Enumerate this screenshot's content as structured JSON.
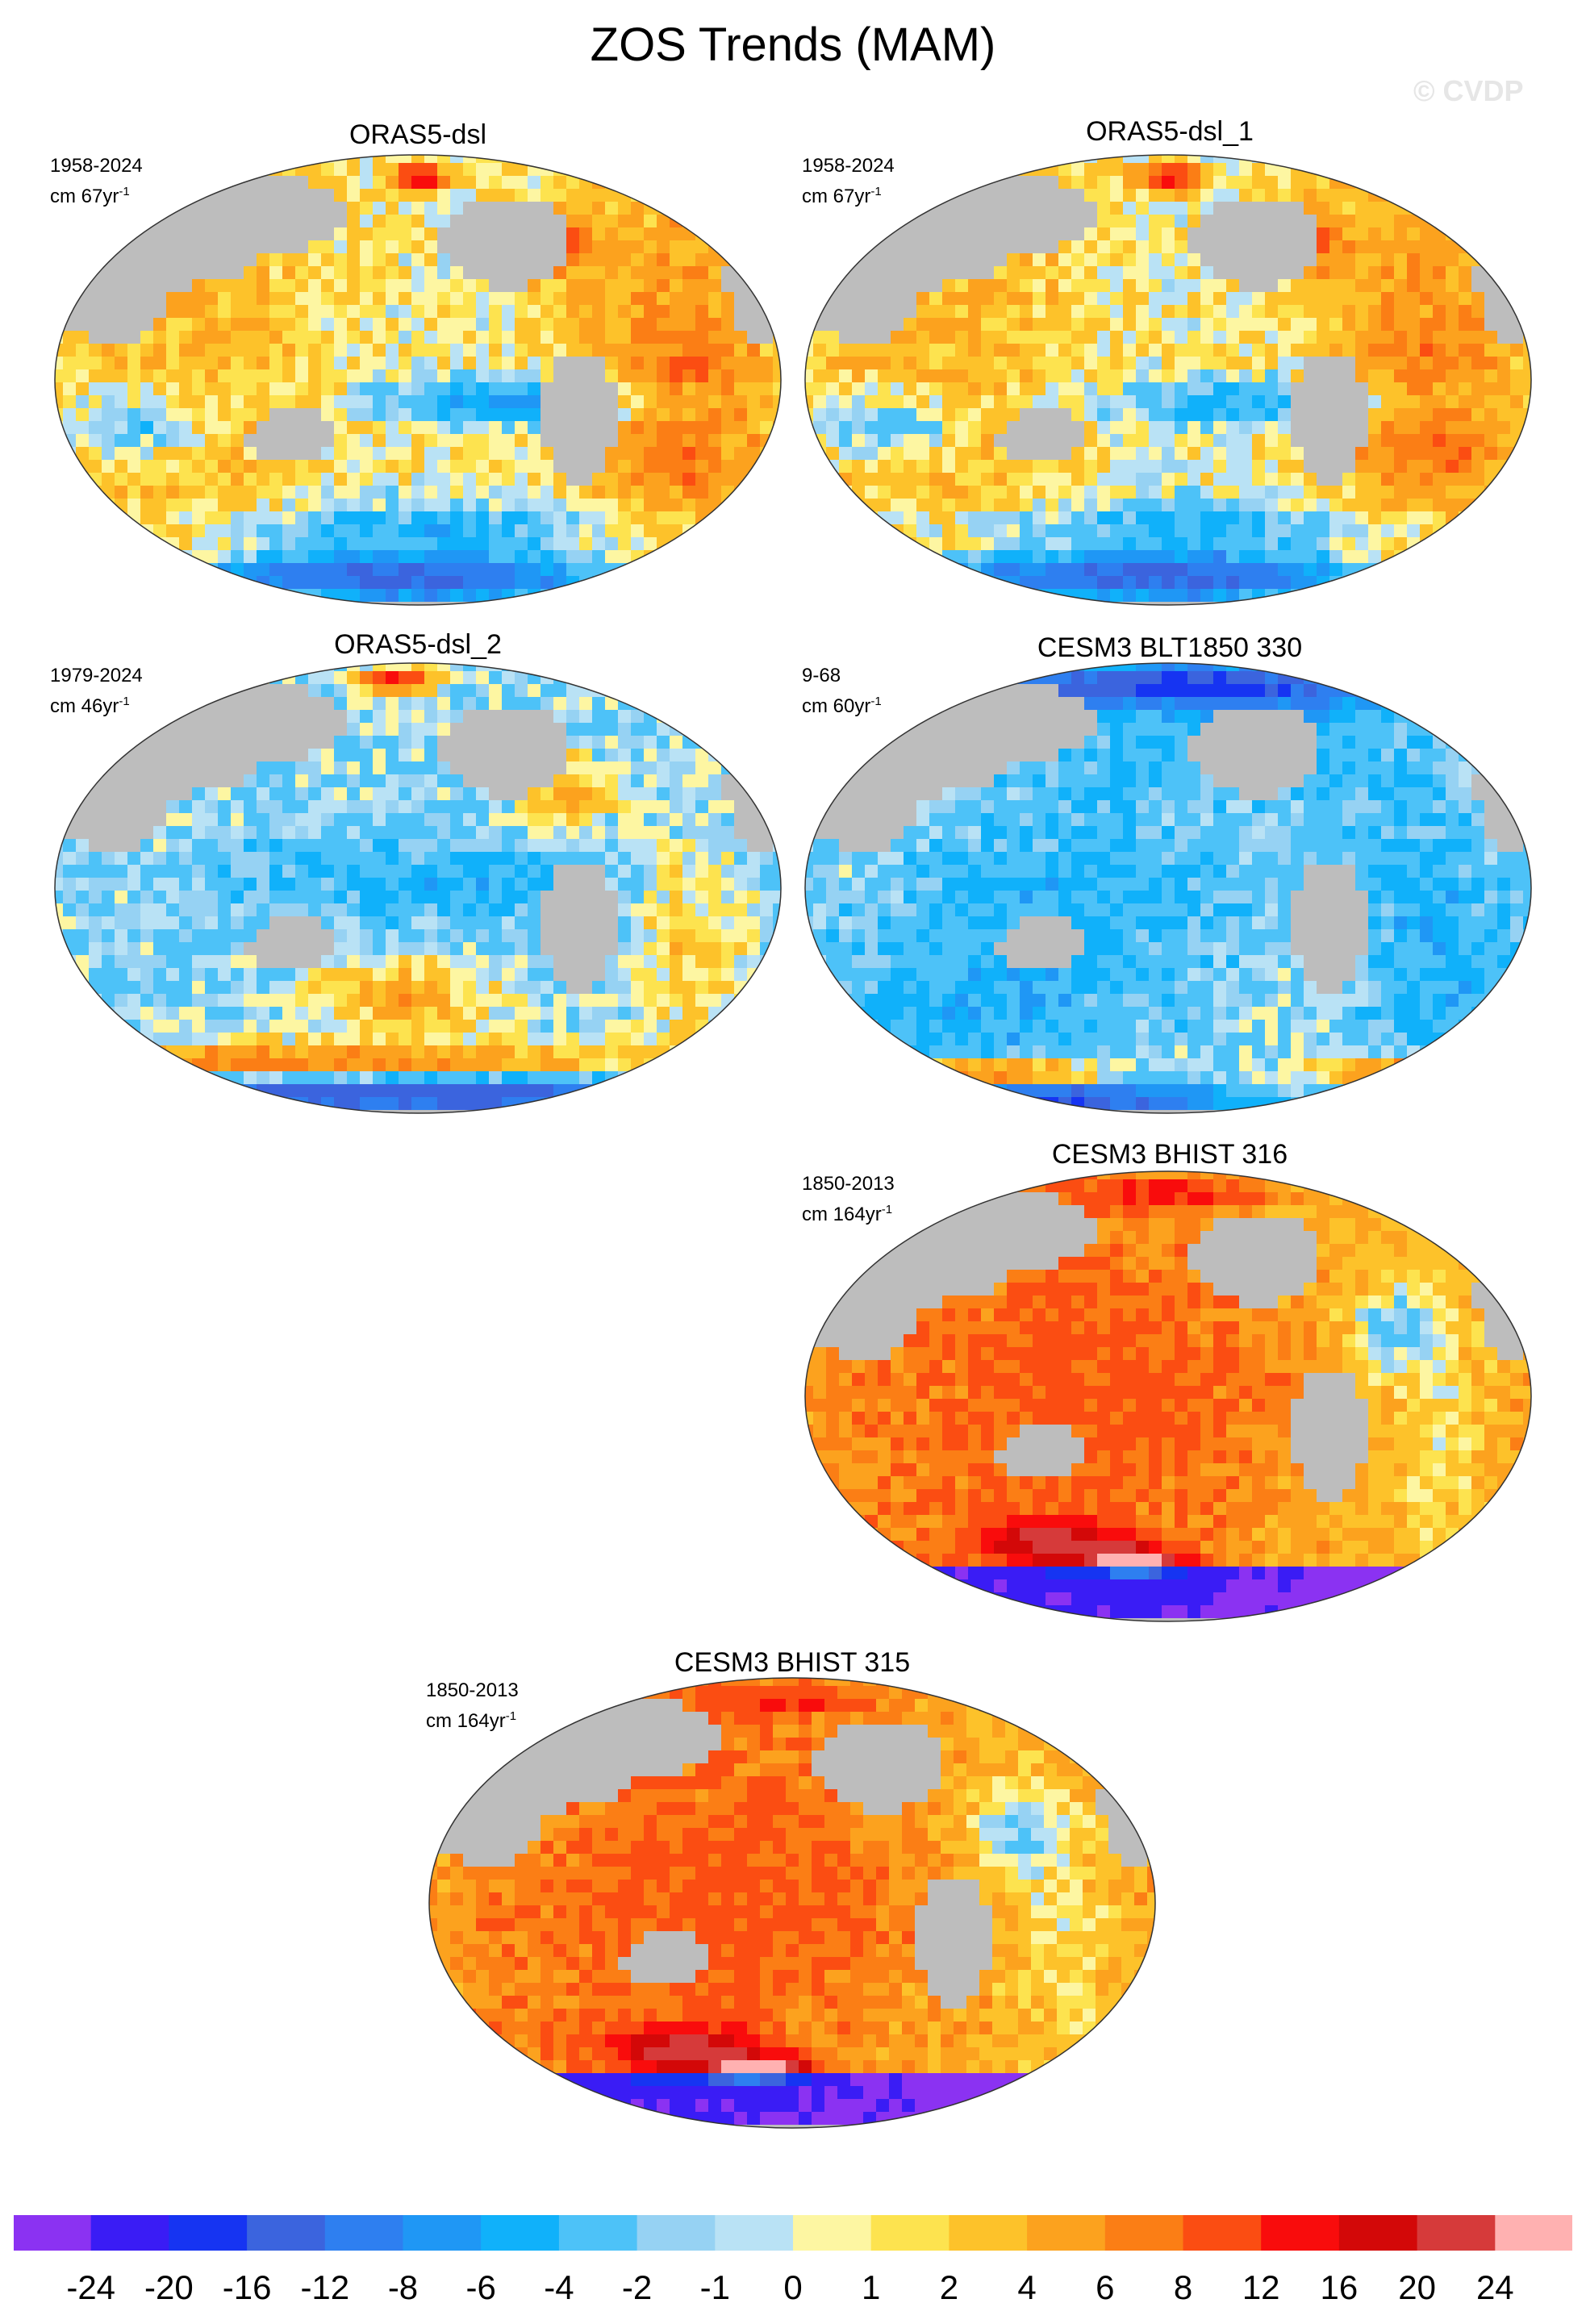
{
  "title": "ZOS Trends (MAM)",
  "watermark": "© CVDP",
  "panels": [
    {
      "title": "ORAS5-dsl",
      "period": "1958-2024",
      "unit_line": "cm 67yr",
      "unit_exp": "-1",
      "pattern": "obs"
    },
    {
      "title": "ORAS5-dsl_1",
      "period": "1958-2024",
      "unit_line": "cm 67yr",
      "unit_exp": "-1",
      "pattern": "obs"
    },
    {
      "title": "ORAS5-dsl_2",
      "period": "1979-2024",
      "unit_line": "cm 46yr",
      "unit_exp": "-1",
      "pattern": "obs2"
    },
    {
      "title": "CESM3 BLT1850 330",
      "period": "9-68",
      "unit_line": "cm 60yr",
      "unit_exp": "-1",
      "pattern": "control"
    },
    {
      "title": "CESM3 BHIST 316",
      "period": "1850-2013",
      "unit_line": "cm 164yr",
      "unit_exp": "-1",
      "pattern": "hist"
    },
    {
      "title": "CESM3 BHIST 315",
      "period": "1850-2013",
      "unit_line": "cm 164yr",
      "unit_exp": "-1",
      "pattern": "hist"
    }
  ],
  "colorbar": {
    "labels": [
      "-24",
      "-20",
      "-16",
      "-12",
      "-8",
      "-6",
      "-4",
      "-2",
      "-1",
      "0",
      "1",
      "2",
      "4",
      "6",
      "8",
      "12",
      "16",
      "20",
      "24"
    ],
    "colors": [
      "#8b32f2",
      "#3a1cf5",
      "#1634f2",
      "#3b64de",
      "#2e7ff0",
      "#1f97f5",
      "#10b1fa",
      "#4dc2f8",
      "#96d2f3",
      "#b9e2f5",
      "#fdf6a2",
      "#fde34f",
      "#fdc22a",
      "#fca21e",
      "#fb7e15",
      "#fb4d12",
      "#f90c0c",
      "#d30808",
      "#d63a3a",
      "#ffb1b1"
    ]
  },
  "chart_data": {
    "type": "heatmap",
    "title": "ZOS Trends (MAM)",
    "projection": "Robinson (global)",
    "units": "cm per period",
    "color_levels": [
      -24,
      -20,
      -16,
      -12,
      -8,
      -6,
      -4,
      -2,
      -1,
      0,
      1,
      2,
      4,
      6,
      8,
      12,
      16,
      20,
      24
    ],
    "panels": [
      {
        "name": "ORAS5-dsl",
        "period": "1958-2024",
        "units": "cm 67yr-1"
      },
      {
        "name": "ORAS5-dsl_1",
        "period": "1958-2024",
        "units": "cm 67yr-1"
      },
      {
        "name": "ORAS5-dsl_2",
        "period": "1979-2024",
        "units": "cm 46yr-1"
      },
      {
        "name": "CESM3 BLT1850 330",
        "period": "9-68",
        "units": "cm 60yr-1"
      },
      {
        "name": "CESM3 BHIST 316",
        "period": "1850-2013",
        "units": "cm 164yr-1"
      },
      {
        "name": "CESM3 BHIST 315",
        "period": "1850-2013",
        "units": "cm 164yr-1"
      }
    ]
  }
}
